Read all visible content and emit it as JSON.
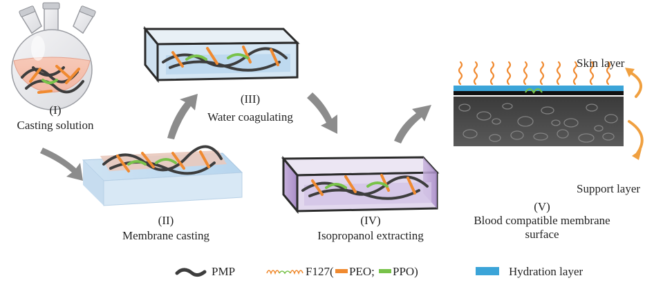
{
  "steps": [
    {
      "numeral": "(I)",
      "caption": "Casting solution"
    },
    {
      "numeral": "(II)",
      "caption": "Membrane casting"
    },
    {
      "numeral": "(III)",
      "caption": "Water coagulating"
    },
    {
      "numeral": "(IV)",
      "caption": "Isopropanol extracting"
    },
    {
      "numeral": "(V)",
      "caption_line1": "Blood compatible membrane",
      "caption_line2": "surface"
    }
  ],
  "layers": {
    "skin": "Skin layer",
    "support": "Support layer"
  },
  "legend": {
    "pmp": "PMP",
    "f127_prefix": "F127(",
    "peo": "PEO;",
    "ppo": "PPO)",
    "hydration": "Hydration layer"
  },
  "colors": {
    "pmp": "#3d3d3d",
    "peo": "#f08a30",
    "ppo": "#78c24a",
    "hydration": "#3ba4d8",
    "arrow_gray": "#8c8c8c",
    "layer_arrow": "#f0a040"
  }
}
